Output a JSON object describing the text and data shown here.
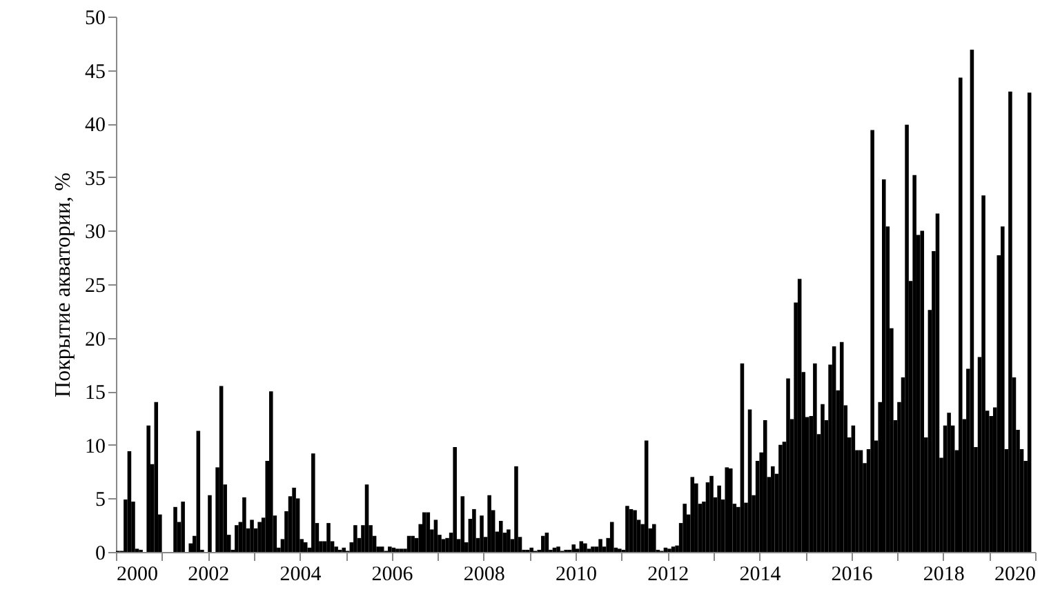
{
  "chart_data": {
    "type": "bar",
    "ylabel": "Покрытие акватории, %",
    "xlim": [
      "2000",
      "2020"
    ],
    "xticks": [
      "2000",
      {
        "value": "2001",
        "label": null
      },
      "2002",
      {
        "value": "2003",
        "label": null
      },
      "2004",
      {
        "value": "2005",
        "label": null
      },
      "2006",
      {
        "value": "2007",
        "label": null
      },
      "2008",
      {
        "value": "2009",
        "label": null
      },
      "2010",
      {
        "value": "2011",
        "label": null
      },
      "2012",
      {
        "value": "2013",
        "label": null
      },
      "2014",
      {
        "value": "2015",
        "label": null
      },
      "2016",
      {
        "value": "2017",
        "label": null
      },
      "2018",
      {
        "value": "2019",
        "label": null
      },
      "2020"
    ],
    "ylim": [
      0,
      50
    ],
    "yticks": [
      0,
      5,
      10,
      15,
      20,
      25,
      30,
      35,
      40,
      45,
      50
    ],
    "grid": false,
    "series": [
      {
        "color": "#000000",
        "x": [
          "2000-01",
          "2000-02",
          "2000-03",
          "2000-04",
          "2000-05",
          "2000-06",
          "2000-07",
          "2000-08",
          "2000-09",
          "2000-10",
          "2000-11",
          "2000-12",
          "2001-01",
          "2001-02",
          "2001-03",
          "2001-04",
          "2001-05",
          "2001-06",
          "2001-07",
          "2001-08",
          "2001-09",
          "2001-10",
          "2001-11",
          "2001-12",
          "2002-01",
          "2002-02",
          "2002-03",
          "2002-04",
          "2002-05",
          "2002-06",
          "2002-07",
          "2002-08",
          "2002-09",
          "2002-10",
          "2002-11",
          "2002-12",
          "2003-01",
          "2003-02",
          "2003-03",
          "2003-04",
          "2003-05",
          "2003-06",
          "2003-07",
          "2003-08",
          "2003-09",
          "2003-10",
          "2003-11",
          "2003-12",
          "2004-01",
          "2004-02",
          "2004-03",
          "2004-04",
          "2004-05",
          "2004-06",
          "2004-07",
          "2004-08",
          "2004-09",
          "2004-10",
          "2004-11",
          "2004-12",
          "2005-01",
          "2005-02",
          "2005-03",
          "2005-04",
          "2005-05",
          "2005-06",
          "2005-07",
          "2005-08",
          "2005-09",
          "2005-10",
          "2005-11",
          "2005-12",
          "2006-01",
          "2006-02",
          "2006-03",
          "2006-04",
          "2006-05",
          "2006-06",
          "2006-07",
          "2006-08",
          "2006-09",
          "2006-10",
          "2006-11",
          "2006-12",
          "2007-01",
          "2007-02",
          "2007-03",
          "2007-04",
          "2007-05",
          "2007-06",
          "2007-07",
          "2007-08",
          "2007-09",
          "2007-10",
          "2007-11",
          "2007-12",
          "2008-01",
          "2008-02",
          "2008-03",
          "2008-04",
          "2008-05",
          "2008-06",
          "2008-07",
          "2008-08",
          "2008-09",
          "2008-10",
          "2008-11",
          "2008-12",
          "2009-01",
          "2009-02",
          "2009-03",
          "2009-04",
          "2009-05",
          "2009-06",
          "2009-07",
          "2009-08",
          "2009-09",
          "2009-10",
          "2009-11",
          "2009-12",
          "2010-01",
          "2010-02",
          "2010-03",
          "2010-04",
          "2010-05",
          "2010-06",
          "2010-07",
          "2010-08",
          "2010-09",
          "2010-10",
          "2010-11",
          "2010-12",
          "2011-01",
          "2011-02",
          "2011-03",
          "2011-04",
          "2011-05",
          "2011-06",
          "2011-07",
          "2011-08",
          "2011-09",
          "2011-10",
          "2011-11",
          "2011-12",
          "2012-01",
          "2012-02",
          "2012-03",
          "2012-04",
          "2012-05",
          "2012-06",
          "2012-07",
          "2012-08",
          "2012-09",
          "2012-10",
          "2012-11",
          "2012-12",
          "2013-01",
          "2013-02",
          "2013-03",
          "2013-04",
          "2013-05",
          "2013-06",
          "2013-07",
          "2013-08",
          "2013-09",
          "2013-10",
          "2013-11",
          "2013-12",
          "2014-01",
          "2014-02",
          "2014-03",
          "2014-04",
          "2014-05",
          "2014-06",
          "2014-07",
          "2014-08",
          "2014-09",
          "2014-10",
          "2014-11",
          "2014-12",
          "2015-01",
          "2015-02",
          "2015-03",
          "2015-04",
          "2015-05",
          "2015-06",
          "2015-07",
          "2015-08",
          "2015-09",
          "2015-10",
          "2015-11",
          "2015-12",
          "2016-01",
          "2016-02",
          "2016-03",
          "2016-04",
          "2016-05",
          "2016-06",
          "2016-07",
          "2016-08",
          "2016-09",
          "2016-10",
          "2016-11",
          "2016-12",
          "2017-01",
          "2017-02",
          "2017-03",
          "2017-04",
          "2017-05",
          "2017-06",
          "2017-07",
          "2017-08",
          "2017-09",
          "2017-10",
          "2017-11",
          "2017-12",
          "2018-01",
          "2018-02",
          "2018-03",
          "2018-04",
          "2018-05",
          "2018-06",
          "2018-07",
          "2018-08",
          "2018-09",
          "2018-10",
          "2018-11",
          "2018-12",
          "2019-01",
          "2019-02",
          "2019-03",
          "2019-04",
          "2019-05",
          "2019-06",
          "2019-07",
          "2019-08",
          "2019-09",
          "2019-10",
          "2019-11"
        ],
        "values": [
          0.1,
          0.1,
          4.9,
          9.4,
          4.7,
          0.3,
          0.2,
          0,
          11.8,
          8.2,
          14.0,
          3.5,
          0,
          0,
          0,
          4.2,
          2.8,
          4.7,
          0,
          0.8,
          1.5,
          11.3,
          0.2,
          0,
          5.3,
          0,
          7.9,
          15.5,
          6.3,
          1.6,
          0.2,
          2.5,
          2.8,
          5.1,
          2.2,
          3.0,
          2.2,
          2.8,
          3.2,
          8.5,
          15.0,
          3.4,
          0.4,
          1.2,
          3.8,
          5.2,
          6.0,
          5.0,
          1.2,
          0.9,
          0.4,
          9.2,
          2.7,
          1.0,
          1.0,
          2.7,
          1.0,
          0.5,
          0.2,
          0.4,
          0.1,
          0.9,
          2.5,
          1.3,
          2.5,
          6.3,
          2.5,
          1.5,
          0.5,
          0.5,
          0.1,
          0.5,
          0.4,
          0.3,
          0.3,
          0.3,
          1.5,
          1.5,
          1.3,
          2.6,
          3.7,
          3.7,
          2.1,
          3.0,
          1.6,
          1.2,
          1.3,
          1.8,
          9.8,
          1.2,
          5.2,
          0.9,
          3.1,
          4.0,
          1.3,
          3.4,
          1.4,
          5.3,
          3.9,
          1.9,
          2.9,
          1.8,
          2.1,
          1.2,
          8.0,
          1.4,
          0.2,
          0.2,
          0.4,
          0.1,
          0.2,
          1.5,
          1.8,
          0.2,
          0.4,
          0.5,
          0.1,
          0.2,
          0.2,
          0.7,
          0.3,
          1.0,
          0.8,
          0.3,
          0.5,
          0.5,
          1.2,
          0.5,
          1.3,
          2.8,
          0.4,
          0.3,
          0.2,
          4.3,
          4.0,
          3.9,
          3.0,
          2.6,
          10.4,
          2.2,
          2.6,
          0.2,
          0.1,
          0.4,
          0.3,
          0.5,
          0.6,
          2.7,
          4.5,
          3.5,
          7.0,
          6.4,
          4.5,
          4.7,
          6.5,
          7.1,
          5.1,
          6.2,
          4.9,
          7.9,
          7.8,
          4.5,
          4.2,
          17.6,
          4.6,
          13.3,
          5.3,
          8.5,
          9.3,
          12.3,
          7.0,
          8.0,
          7.3,
          10.0,
          10.3,
          16.2,
          12.4,
          23.3,
          25.5,
          16.8,
          12.6,
          12.7,
          17.6,
          11.0,
          13.8,
          12.3,
          17.5,
          19.2,
          15.1,
          19.6,
          13.7,
          10.7,
          11.8,
          9.5,
          9.5,
          8.3,
          9.6,
          39.4,
          10.4,
          14.0,
          34.8,
          30.4,
          20.9,
          12.3,
          14.0,
          16.3,
          39.9,
          25.3,
          35.2,
          29.6,
          30.0,
          10.7,
          22.6,
          28.1,
          31.6,
          8.8,
          11.8,
          13.0,
          11.8,
          9.5,
          44.3,
          12.4,
          17.1,
          46.9,
          9.8,
          18.2,
          33.3,
          13.2,
          12.7,
          13.5,
          27.7,
          30.4,
          9.6,
          43.0,
          16.3,
          11.4,
          9.6,
          8.5,
          42.9
        ]
      }
    ]
  }
}
